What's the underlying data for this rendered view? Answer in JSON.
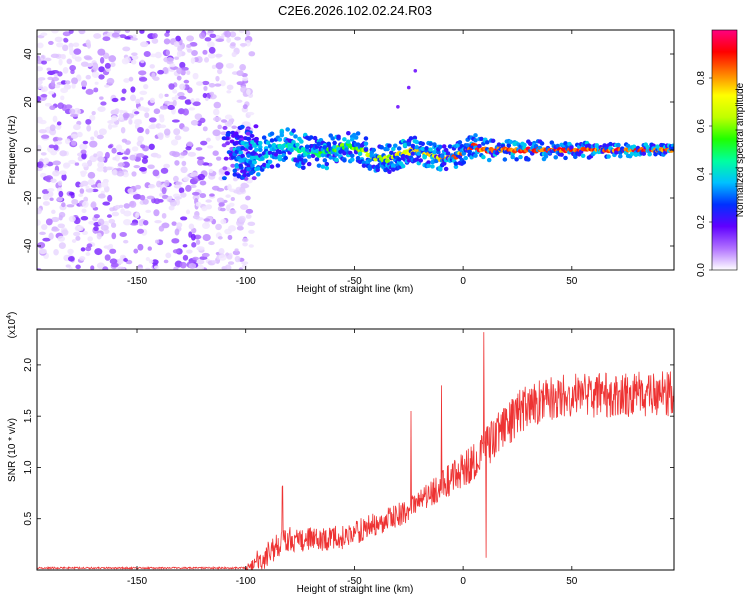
{
  "title": "C2E6.2026.102.02.24.R03",
  "chart_data": [
    {
      "type": "heatmap",
      "xlabel": "Height of straight line (km)",
      "ylabel": "Frequency (Hz)",
      "xlim": [
        -196,
        97
      ],
      "ylim": [
        -50,
        50
      ],
      "xticks": [
        -150,
        -100,
        -50,
        0,
        50
      ],
      "yticks": [
        -40,
        -20,
        0,
        20,
        40
      ],
      "colorbar": {
        "label": "Normalized spectral amplitude",
        "range": [
          0,
          1
        ],
        "ticks": [
          "0.0",
          "0.2",
          "0.4",
          "0.6",
          "0.8"
        ],
        "colors": [
          "#ffffff",
          "#b070ff",
          "#6000ff",
          "#0030ff",
          "#00c0ff",
          "#00ffa0",
          "#20ff00",
          "#c0ff00",
          "#ffff00",
          "#ff8000",
          "#ff0000",
          "#ff0080"
        ]
      },
      "regions": [
        {
          "name": "noise",
          "x_range": [
            -196,
            -105
          ],
          "freq_range": [
            -50,
            50
          ],
          "amplitude": [
            0.0,
            0.15
          ]
        },
        {
          "name": "transition",
          "x_range": [
            -110,
            -95
          ],
          "freq_range": [
            -12,
            10
          ],
          "amplitude": [
            0.1,
            0.3
          ]
        },
        {
          "name": "signal-band",
          "x_range": [
            -105,
            97
          ],
          "center_freq": 0,
          "half_width_start": 8,
          "half_width_end": 2,
          "amplitude": [
            0.2,
            1.0
          ]
        },
        {
          "name": "stray-points",
          "x": [
            -22,
            -25,
            -30
          ],
          "freq": [
            33,
            26,
            18
          ],
          "amplitude": 0.1
        }
      ]
    },
    {
      "type": "line",
      "xlabel": "Height of straight line (km)",
      "ylabel": "SNR (10 * v/v)",
      "y_multiplier": "(x10",
      "y_multiplier_exp": "4",
      "y_multiplier_close": ")",
      "xlim": [
        -196,
        97
      ],
      "ylim": [
        0,
        2.35
      ],
      "xticks": [
        -150,
        -100,
        -50,
        0,
        50
      ],
      "yticks": [
        0.5,
        1.0,
        1.5,
        2.0
      ],
      "ytick_labels": [
        "0.5",
        "1.0",
        "1.5",
        "2.0"
      ],
      "color": "#ee3333",
      "x_knots": [
        -196,
        -100,
        -96,
        -90,
        -82,
        -70,
        -55,
        -40,
        -28,
        -15,
        -5,
        5,
        15,
        22,
        30,
        50,
        97
      ],
      "y_knots": [
        0.02,
        0.02,
        0.06,
        0.15,
        0.3,
        0.3,
        0.32,
        0.45,
        0.55,
        0.75,
        0.9,
        1.05,
        1.3,
        1.45,
        1.62,
        1.7,
        1.72
      ],
      "spikes": [
        {
          "x": 9.5,
          "y": 2.32
        },
        {
          "x": 10.5,
          "y": 0.12
        },
        {
          "x": -10,
          "y": 1.8
        },
        {
          "x": -24,
          "y": 1.55
        }
      ]
    }
  ]
}
